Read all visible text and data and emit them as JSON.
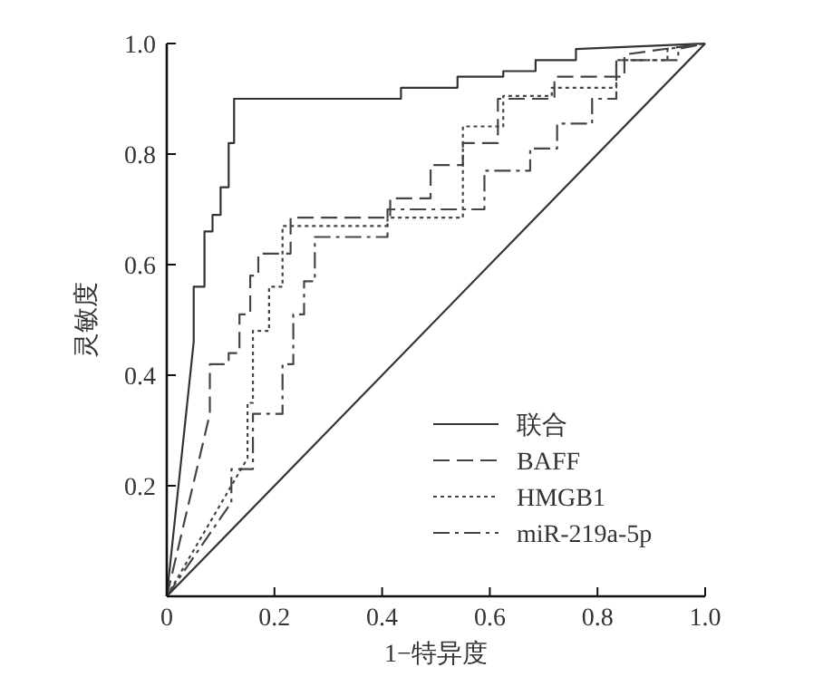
{
  "chart_data": {
    "type": "line",
    "xlabel": "1−特异度",
    "ylabel": "灵敏度",
    "xlim": [
      0,
      1
    ],
    "ylim": [
      0,
      1
    ],
    "xticks": [
      0,
      0.2,
      0.4,
      0.6,
      0.8,
      {
        "value": 1,
        "label": "1.0"
      }
    ],
    "yticks": [
      0.2,
      0.4,
      0.6,
      0.8,
      {
        "value": 1,
        "label": "1.0"
      }
    ],
    "legend": "bottom right",
    "grid": false,
    "series": [
      {
        "name": "联合",
        "color": "#333333",
        "line_style": "solid",
        "x": [
          0,
          0.05,
          0.05,
          0.07,
          0.07,
          0.085,
          0.085,
          0.1,
          0.1,
          0.115,
          0.115,
          0.125,
          0.125,
          0.435,
          0.435,
          0.54,
          0.54,
          0.625,
          0.625,
          0.685,
          0.685,
          0.76,
          0.76,
          1
        ],
        "values": [
          0,
          0.46,
          0.56,
          0.56,
          0.66,
          0.66,
          0.69,
          0.69,
          0.74,
          0.74,
          0.82,
          0.82,
          0.9,
          0.9,
          0.92,
          0.92,
          0.94,
          0.94,
          0.95,
          0.95,
          0.97,
          0.97,
          0.99,
          1
        ]
      },
      {
        "name": "BAFF",
        "color": "#444444",
        "line_style": "dashed",
        "x": [
          0,
          0.08,
          0.08,
          0.115,
          0.115,
          0.135,
          0.135,
          0.155,
          0.155,
          0.17,
          0.17,
          0.23,
          0.23,
          0.415,
          0.415,
          0.49,
          0.49,
          0.55,
          0.55,
          0.615,
          0.615,
          0.72,
          0.72,
          0.85,
          0.85,
          1
        ],
        "values": [
          0,
          0.33,
          0.42,
          0.42,
          0.44,
          0.44,
          0.51,
          0.51,
          0.58,
          0.58,
          0.62,
          0.62,
          0.685,
          0.685,
          0.72,
          0.72,
          0.78,
          0.78,
          0.82,
          0.82,
          0.9,
          0.9,
          0.94,
          0.94,
          0.98,
          1
        ]
      },
      {
        "name": "HMGB1",
        "color": "#444444",
        "line_style": "dotted",
        "x": [
          0,
          0.15,
          0.15,
          0.16,
          0.16,
          0.19,
          0.19,
          0.215,
          0.215,
          0.41,
          0.41,
          0.55,
          0.55,
          0.625,
          0.625,
          0.715,
          0.715,
          0.835,
          0.835,
          0.93,
          0.93,
          1
        ],
        "values": [
          0,
          0.25,
          0.35,
          0.35,
          0.48,
          0.48,
          0.56,
          0.56,
          0.67,
          0.67,
          0.685,
          0.685,
          0.85,
          0.85,
          0.905,
          0.905,
          0.92,
          0.92,
          0.97,
          0.97,
          0.99,
          1
        ]
      },
      {
        "name": "miR-219a-5p",
        "color": "#444444",
        "line_style": "dashdot",
        "x": [
          0,
          0.12,
          0.12,
          0.16,
          0.16,
          0.215,
          0.215,
          0.235,
          0.235,
          0.255,
          0.255,
          0.275,
          0.275,
          0.41,
          0.41,
          0.59,
          0.59,
          0.675,
          0.675,
          0.725,
          0.725,
          0.79,
          0.79,
          0.835,
          0.835,
          0.95,
          0.95,
          1
        ],
        "values": [
          0,
          0.17,
          0.23,
          0.23,
          0.33,
          0.33,
          0.42,
          0.42,
          0.51,
          0.51,
          0.57,
          0.57,
          0.65,
          0.65,
          0.7,
          0.7,
          0.77,
          0.77,
          0.81,
          0.81,
          0.855,
          0.855,
          0.9,
          0.9,
          0.97,
          0.97,
          0.99,
          1
        ]
      },
      {
        "color": "#333333",
        "line_style": "solid",
        "x": [
          0,
          1
        ],
        "values": [
          0,
          1
        ]
      }
    ]
  }
}
